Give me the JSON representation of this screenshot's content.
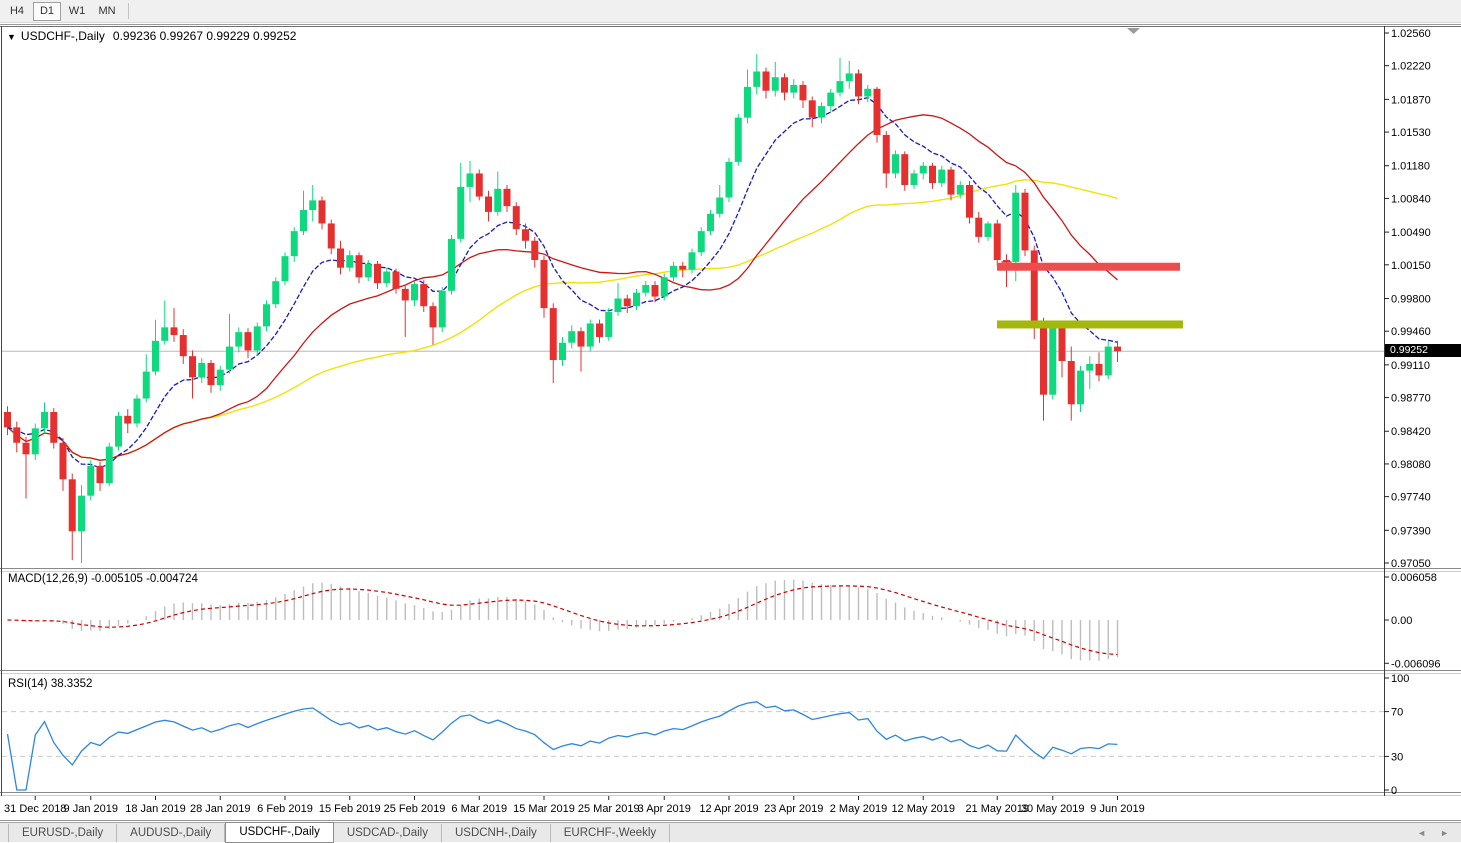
{
  "toolbar": {
    "timeframes": [
      {
        "label": "H4",
        "active": false
      },
      {
        "label": "D1",
        "active": true
      },
      {
        "label": "W1",
        "active": false
      },
      {
        "label": "MN",
        "active": false
      }
    ]
  },
  "icons": {
    "dropdown": "▼",
    "tab_scroll_left": "◄",
    "tab_scroll_right": "►"
  },
  "chart": {
    "title": "USDCHF-,Daily",
    "ohlc_label": "0.99236 0.99267 0.99229 0.99252",
    "price_badge": "0.99252",
    "macd_label": "MACD(12,26,9) -0.005105 -0.004724",
    "rsi_label": "RSI(14) 38.3352"
  },
  "price_axis": [
    "1.02560",
    "1.02220",
    "1.01870",
    "1.01530",
    "1.01180",
    "1.00840",
    "1.00490",
    "1.00150",
    "0.99800",
    "0.99460",
    "0.99110",
    "0.98770",
    "0.98420",
    "0.98080",
    "0.97740",
    "0.97390",
    "0.97050"
  ],
  "macd_axis": [
    "0.006058",
    "0.00",
    "-0.006096"
  ],
  "rsi_axis": [
    "100",
    "70",
    "30",
    "0"
  ],
  "date_axis": [
    "31 Dec 2018",
    "9 Jan 2019",
    "18 Jan 2019",
    "28 Jan 2019",
    "6 Feb 2019",
    "15 Feb 2019",
    "25 Feb 2019",
    "6 Mar 2019",
    "15 Mar 2019",
    "25 Mar 2019",
    "3 Apr 2019",
    "12 Apr 2019",
    "23 Apr 2019",
    "2 May 2019",
    "12 May 2019",
    "21 May 2019",
    "30 May 2019",
    "9 Jun 2019"
  ],
  "tabs": [
    {
      "label": "EURUSD-,Daily",
      "active": false
    },
    {
      "label": "AUDUSD-,Daily",
      "active": false
    },
    {
      "label": "USDCHF-,Daily",
      "active": true
    },
    {
      "label": "USDCAD-,Daily",
      "active": false
    },
    {
      "label": "USDCNH-,Daily",
      "active": false
    },
    {
      "label": "EURCHF-,Weekly",
      "active": false
    }
  ],
  "colors": {
    "bull": "#0fd97f",
    "bear": "#e53030",
    "ma_fast": "#1a1ac0",
    "ma_mid": "#cc1717",
    "ma_slow": "#f2e205",
    "resistance": "#ee4d4d",
    "support": "#a3b80a",
    "rsi_line": "#2e86e0",
    "rsi_level": "#c9c9c9",
    "macd_hist": "#bdbdbd",
    "macd_signal": "#cc0000",
    "price_line": "#b8b8b8",
    "badge_bg": "#000000",
    "axis_text": "#000000"
  },
  "chart_data": {
    "type": "candlestick",
    "symbol": "USDCHF-",
    "timeframe": "Daily",
    "last_ohlc": {
      "open": 0.99236,
      "high": 0.99267,
      "low": 0.99229,
      "close": 0.99252
    },
    "price_range": [
      0.9705,
      1.0256
    ],
    "candles": [
      [
        0.9862,
        0.9868,
        0.9838,
        0.9846
      ],
      [
        0.9846,
        0.9852,
        0.982,
        0.983
      ],
      [
        0.983,
        0.9836,
        0.9772,
        0.9818
      ],
      [
        0.9818,
        0.985,
        0.9812,
        0.9845
      ],
      [
        0.9845,
        0.9872,
        0.984,
        0.9862
      ],
      [
        0.9862,
        0.9866,
        0.9824,
        0.983
      ],
      [
        0.983,
        0.9835,
        0.978,
        0.9792
      ],
      [
        0.9792,
        0.9798,
        0.9708,
        0.9738
      ],
      [
        0.9738,
        0.9786,
        0.9705,
        0.9775
      ],
      [
        0.9775,
        0.9812,
        0.977,
        0.9806
      ],
      [
        0.9806,
        0.981,
        0.978,
        0.9788
      ],
      [
        0.9788,
        0.983,
        0.9785,
        0.9826
      ],
      [
        0.9826,
        0.9862,
        0.9822,
        0.9858
      ],
      [
        0.9858,
        0.9865,
        0.984,
        0.985
      ],
      [
        0.985,
        0.988,
        0.9846,
        0.9876
      ],
      [
        0.9876,
        0.9922,
        0.9872,
        0.9904
      ],
      [
        0.9904,
        0.9958,
        0.99,
        0.9936
      ],
      [
        0.9936,
        0.9978,
        0.9932,
        0.995
      ],
      [
        0.995,
        0.997,
        0.9935,
        0.9942
      ],
      [
        0.9942,
        0.9948,
        0.9912,
        0.992
      ],
      [
        0.992,
        0.9926,
        0.9876,
        0.9898
      ],
      [
        0.9898,
        0.9918,
        0.9892,
        0.9913
      ],
      [
        0.9913,
        0.9916,
        0.9882,
        0.989
      ],
      [
        0.989,
        0.991,
        0.9884,
        0.9906
      ],
      [
        0.9906,
        0.9964,
        0.9902,
        0.993
      ],
      [
        0.993,
        0.995,
        0.9924,
        0.9945
      ],
      [
        0.9945,
        0.9949,
        0.9918,
        0.9926
      ],
      [
        0.9926,
        0.9955,
        0.992,
        0.9951
      ],
      [
        0.9951,
        0.9978,
        0.9946,
        0.9974
      ],
      [
        0.9974,
        1.0002,
        0.997,
        0.9998
      ],
      [
        0.9998,
        1.0028,
        0.9994,
        1.0024
      ],
      [
        1.0024,
        1.0054,
        1.0018,
        1.005
      ],
      [
        1.005,
        1.0092,
        1.0046,
        1.0072
      ],
      [
        1.0072,
        1.0098,
        1.006,
        1.0082
      ],
      [
        1.0082,
        1.0086,
        1.0052,
        1.0058
      ],
      [
        1.0058,
        1.0062,
        1.0026,
        1.0032
      ],
      [
        1.0032,
        1.004,
        1.0005,
        1.0012
      ],
      [
        1.0012,
        1.003,
        1.0008,
        1.0025
      ],
      [
        1.0025,
        1.0028,
        0.9996,
        1.0002
      ],
      [
        1.0002,
        1.002,
        0.9998,
        1.0016
      ],
      [
        1.0016,
        1.0019,
        0.999,
        0.9996
      ],
      [
        0.9996,
        1.0012,
        0.9992,
        1.0008
      ],
      [
        1.0008,
        1.0011,
        0.9985,
        0.999
      ],
      [
        0.999,
        0.9994,
        0.994,
        0.9978
      ],
      [
        0.9978,
        0.9998,
        0.9972,
        0.9995
      ],
      [
        0.9995,
        0.9999,
        0.9966,
        0.9972
      ],
      [
        0.9972,
        0.9976,
        0.9932,
        0.995
      ],
      [
        0.995,
        0.9992,
        0.9945,
        0.9988
      ],
      [
        0.9988,
        1.0046,
        0.9984,
        1.0042
      ],
      [
        1.0042,
        1.0121,
        1.0038,
        1.0096
      ],
      [
        1.0096,
        1.0123,
        1.008,
        1.011
      ],
      [
        1.011,
        1.0114,
        1.0082,
        1.0086
      ],
      [
        1.0086,
        1.0092,
        1.006,
        1.007
      ],
      [
        1.007,
        1.0112,
        1.0066,
        1.0094
      ],
      [
        1.0094,
        1.0098,
        1.007,
        1.0076
      ],
      [
        1.0076,
        1.008,
        1.0046,
        1.0052
      ],
      [
        1.0052,
        1.0058,
        1.0032,
        1.004
      ],
      [
        1.004,
        1.0044,
        1.0012,
        1.002
      ],
      [
        1.002,
        1.0024,
        0.996,
        0.997
      ],
      [
        0.997,
        0.9975,
        0.9892,
        0.9916
      ],
      [
        0.9916,
        0.994,
        0.991,
        0.9934
      ],
      [
        0.9934,
        0.9952,
        0.9928,
        0.9946
      ],
      [
        0.9946,
        0.995,
        0.9904,
        0.993
      ],
      [
        0.993,
        0.9958,
        0.9925,
        0.9954
      ],
      [
        0.9954,
        0.9958,
        0.9934,
        0.994
      ],
      [
        0.994,
        0.997,
        0.9936,
        0.9966
      ],
      [
        0.9966,
        0.9996,
        0.9962,
        0.998
      ],
      [
        0.998,
        0.9984,
        0.9965,
        0.9972
      ],
      [
        0.9972,
        0.999,
        0.9968,
        0.9986
      ],
      [
        0.9986,
        0.9998,
        0.9982,
        0.9994
      ],
      [
        0.9994,
        0.9998,
        0.9976,
        0.9982
      ],
      [
        0.9982,
        1.0006,
        0.9978,
        1.0002
      ],
      [
        1.0002,
        1.0018,
        0.9998,
        1.0014
      ],
      [
        1.0014,
        1.0018,
        1.0002,
        1.001
      ],
      [
        1.001,
        1.0032,
        1.0006,
        1.0028
      ],
      [
        1.0028,
        1.0054,
        1.0024,
        1.005
      ],
      [
        1.005,
        1.0072,
        1.0046,
        1.0068
      ],
      [
        1.0068,
        1.0098,
        1.0064,
        1.0085
      ],
      [
        1.0085,
        1.0126,
        1.008,
        1.0122
      ],
      [
        1.0122,
        1.0172,
        1.0118,
        1.0168
      ],
      [
        1.0168,
        1.0218,
        1.0162,
        1.02
      ],
      [
        1.02,
        1.0234,
        1.0192,
        1.0216
      ],
      [
        1.0216,
        1.022,
        1.0188,
        1.0196
      ],
      [
        1.0196,
        1.0226,
        1.019,
        1.021
      ],
      [
        1.021,
        1.0214,
        1.0186,
        1.0194
      ],
      [
        1.0194,
        1.0208,
        1.0188,
        1.0202
      ],
      [
        1.0202,
        1.0206,
        1.0178,
        1.0186
      ],
      [
        1.0186,
        1.019,
        1.0158,
        1.0168
      ],
      [
        1.0168,
        1.0184,
        1.0162,
        1.018
      ],
      [
        1.018,
        1.0198,
        1.0174,
        1.0194
      ],
      [
        1.0194,
        1.023,
        1.019,
        1.0206
      ],
      [
        1.0206,
        1.0227,
        1.0198,
        1.0214
      ],
      [
        1.0214,
        1.0218,
        1.0182,
        1.019
      ],
      [
        1.019,
        1.0202,
        1.0184,
        1.0198
      ],
      [
        1.0198,
        1.02,
        1.0142,
        1.015
      ],
      [
        1.015,
        1.0154,
        1.0095,
        1.011
      ],
      [
        1.011,
        1.0134,
        1.0105,
        1.013
      ],
      [
        1.013,
        1.0133,
        1.0092,
        1.0098
      ],
      [
        1.0098,
        1.0114,
        1.0094,
        1.011
      ],
      [
        1.011,
        1.0122,
        1.0104,
        1.0118
      ],
      [
        1.0118,
        1.0121,
        1.0094,
        1.01
      ],
      [
        1.01,
        1.0118,
        1.0096,
        1.0114
      ],
      [
        1.0114,
        1.0117,
        1.0082,
        1.0088
      ],
      [
        1.0088,
        1.0102,
        1.0084,
        1.0098
      ],
      [
        1.0098,
        1.0102,
        1.0058,
        1.0064
      ],
      [
        1.0064,
        1.007,
        1.0038,
        1.0044
      ],
      [
        1.0044,
        1.006,
        1.004,
        1.0058
      ],
      [
        1.0058,
        1.0062,
        1.0014,
        1.002
      ],
      [
        1.002,
        1.0026,
        0.9992,
        1.0018
      ],
      [
        1.0018,
        1.0098,
        0.9998,
        1.009
      ],
      [
        1.009,
        1.0094,
        1.0024,
        1.003
      ],
      [
        1.003,
        1.0035,
        0.9938,
        0.9955
      ],
      [
        0.9955,
        0.996,
        0.9853,
        0.988
      ],
      [
        0.988,
        0.9953,
        0.9875,
        0.995
      ],
      [
        0.995,
        0.9954,
        0.9898,
        0.9915
      ],
      [
        0.9915,
        0.993,
        0.9853,
        0.987
      ],
      [
        0.987,
        0.991,
        0.9862,
        0.9905
      ],
      [
        0.9905,
        0.992,
        0.9886,
        0.9912
      ],
      [
        0.9912,
        0.9924,
        0.9894,
        0.99
      ],
      [
        0.99,
        0.9936,
        0.9896,
        0.993
      ],
      [
        0.993,
        0.9936,
        0.9914,
        0.99252
      ]
    ],
    "date_tick_bars": [
      3,
      9,
      16,
      23,
      30,
      37,
      44,
      51,
      58,
      65,
      71,
      78,
      85,
      92,
      99,
      107,
      113,
      120
    ],
    "moving_averages": [
      {
        "name": "fast",
        "period": 10,
        "method": "ema",
        "style": "dashed",
        "color_key": "ma_fast"
      },
      {
        "name": "mid",
        "period": 22,
        "method": "sma",
        "style": "solid",
        "color_key": "ma_mid"
      },
      {
        "name": "slow",
        "period": 45,
        "method": "sma",
        "style": "solid",
        "color_key": "ma_slow"
      }
    ],
    "resistance_line": {
      "price": 1.0013
    },
    "support_line": {
      "price": 0.9953
    },
    "current_price_line": {
      "price": 0.99252
    },
    "macd": {
      "fast": 12,
      "slow": 26,
      "signal": 9,
      "current_main": -0.005105,
      "current_signal": -0.004724,
      "scale_max": 0.006058,
      "scale_min": -0.006096
    },
    "rsi": {
      "period": 14,
      "current": 38.3352,
      "levels": [
        70,
        30
      ],
      "scale": [
        0,
        100
      ]
    }
  }
}
